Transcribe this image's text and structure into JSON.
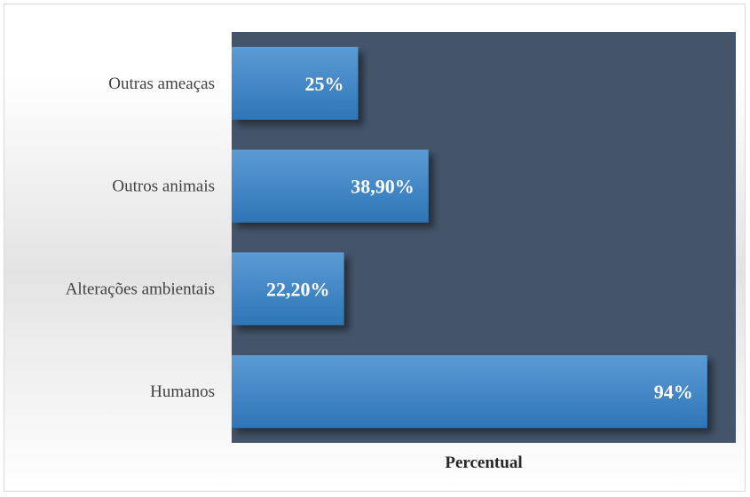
{
  "chart_data": {
    "type": "bar",
    "orientation": "horizontal",
    "categories": [
      "Humanos",
      "Alterações ambientais",
      "Outros animais",
      "Outras ameaças"
    ],
    "values": [
      94,
      22.2,
      38.9,
      25
    ],
    "data_labels": [
      "94%",
      "22,20%",
      "38,90%",
      "25%"
    ],
    "xlabel": "Percentual",
    "ylabel": "",
    "xlim": [
      0,
      100
    ],
    "grid": false,
    "legend": "none",
    "colors": {
      "plot_area": "#44546a",
      "bar_top": "#5b9bd5",
      "bar_bottom": "#2e75b6",
      "label_text": "#404040",
      "data_label_text": "#ffffff"
    }
  }
}
